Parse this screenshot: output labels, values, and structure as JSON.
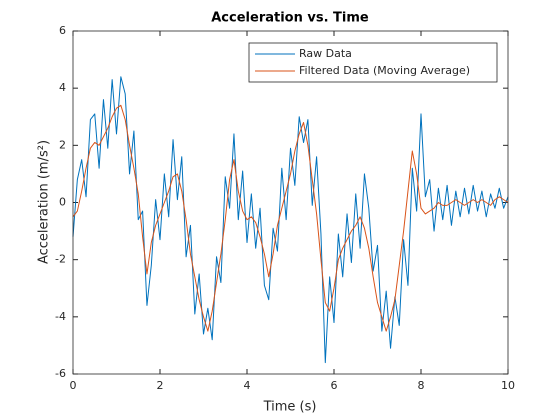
{
  "chart_data": {
    "type": "line",
    "title": "Acceleration vs. Time",
    "xlabel": "Time (s)",
    "ylabel": "Acceleration (m/s²)",
    "x": [
      0,
      0.1,
      0.2,
      0.3,
      0.4,
      0.5,
      0.6,
      0.7,
      0.8,
      0.9,
      1,
      1.1,
      1.2,
      1.3,
      1.4,
      1.5,
      1.6,
      1.7,
      1.8,
      1.9,
      2,
      2.1,
      2.2,
      2.3,
      2.4,
      2.5,
      2.6,
      2.7,
      2.8,
      2.9,
      3,
      3.1,
      3.2,
      3.3,
      3.4,
      3.5,
      3.6,
      3.7,
      3.8,
      3.9,
      4,
      4.1,
      4.2,
      4.3,
      4.4,
      4.5,
      4.6,
      4.7,
      4.8,
      4.9,
      5,
      5.1,
      5.2,
      5.3,
      5.4,
      5.5,
      5.6,
      5.7,
      5.8,
      5.9,
      6,
      6.1,
      6.2,
      6.3,
      6.4,
      6.5,
      6.6,
      6.7,
      6.8,
      6.9,
      7,
      7.1,
      7.2,
      7.3,
      7.4,
      7.5,
      7.6,
      7.7,
      7.8,
      7.9,
      8,
      8.1,
      8.2,
      8.3,
      8.4,
      8.5,
      8.6,
      8.7,
      8.8,
      8.9,
      9,
      9.1,
      9.2,
      9.3,
      9.4,
      9.5,
      9.6,
      9.7,
      9.8,
      9.9,
      10
    ],
    "series": [
      {
        "name": "Raw Data",
        "color": "#0072bd",
        "values": [
          -1.2,
          0.8,
          1.5,
          0.2,
          2.9,
          3.1,
          1.2,
          3.6,
          1.9,
          4.3,
          2.4,
          4.4,
          3.8,
          1.0,
          2.5,
          -0.6,
          -0.3,
          -3.6,
          -2.2,
          0.1,
          -1.3,
          1.0,
          -0.5,
          2.2,
          0.1,
          1.6,
          -1.9,
          -0.8,
          -3.9,
          -2.5,
          -4.6,
          -3.7,
          -4.8,
          -1.9,
          -2.8,
          0.9,
          -0.2,
          2.4,
          -0.6,
          1.1,
          -1.4,
          0.3,
          -1.6,
          -0.2,
          -2.9,
          -3.4,
          -0.9,
          -1.7,
          1.2,
          -0.6,
          1.9,
          0.6,
          3.0,
          2.1,
          2.9,
          -0.1,
          1.6,
          -1.1,
          -5.6,
          -2.6,
          -4.2,
          -1.1,
          -2.6,
          -0.4,
          -2.1,
          0.3,
          -1.6,
          1.0,
          -0.2,
          -2.4,
          -1.5,
          -4.5,
          -3.1,
          -5.1,
          -3.3,
          -4.3,
          -1.3,
          -2.9,
          1.2,
          -0.3,
          3.1,
          0.2,
          0.8,
          -1.0,
          0.5,
          -0.6,
          0.6,
          -0.8,
          0.4,
          -0.5,
          0.5,
          -0.4,
          0.6,
          -0.3,
          0.4,
          -0.5,
          0.3,
          -0.2,
          0.5,
          -0.2,
          0.2
        ]
      },
      {
        "name": "Filtered Data (Moving Average)",
        "color": "#d95319",
        "values": [
          -0.5,
          -0.3,
          0.4,
          1.2,
          1.9,
          2.1,
          2.0,
          2.3,
          2.6,
          3.0,
          3.3,
          3.4,
          2.9,
          2.0,
          1.2,
          0.3,
          -1.2,
          -2.5,
          -1.4,
          -0.8,
          -0.4,
          0.0,
          0.4,
          0.9,
          1.0,
          0.4,
          -0.6,
          -1.8,
          -2.6,
          -3.4,
          -4.0,
          -4.5,
          -3.8,
          -2.8,
          -1.8,
          -0.6,
          0.8,
          1.5,
          0.4,
          -0.3,
          -0.6,
          -0.5,
          -0.7,
          -1.2,
          -1.8,
          -2.6,
          -1.8,
          -0.8,
          -0.2,
          0.4,
          1.0,
          1.8,
          2.4,
          2.8,
          2.0,
          0.8,
          -0.4,
          -2.0,
          -3.5,
          -3.8,
          -3.0,
          -2.0,
          -1.6,
          -1.3,
          -1.0,
          -0.8,
          -0.5,
          -0.9,
          -1.6,
          -2.6,
          -3.5,
          -4.0,
          -4.5,
          -4.0,
          -3.4,
          -2.2,
          -1.0,
          0.4,
          1.8,
          1.0,
          -0.2,
          -0.4,
          -0.3,
          -0.2,
          0.0,
          -0.1,
          -0.1,
          0.0,
          0.1,
          0.0,
          -0.1,
          0.0,
          0.1,
          0.0,
          0.1,
          0.0,
          -0.1,
          0.1,
          0.2,
          0.1,
          0.0
        ]
      }
    ],
    "xlim": [
      0,
      10
    ],
    "xticks": [
      0,
      2,
      4,
      6,
      8,
      10
    ],
    "ylim": [
      -6,
      6
    ],
    "yticks": [
      -6,
      -4,
      -2,
      0,
      2,
      4,
      6
    ],
    "grid": false,
    "legend": "northeast"
  }
}
